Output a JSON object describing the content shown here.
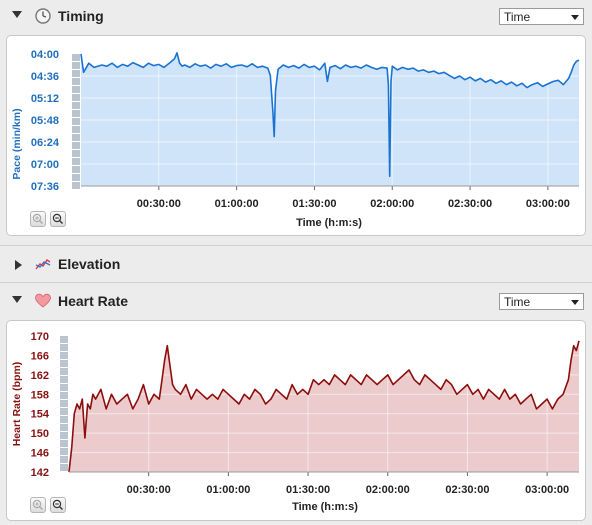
{
  "sections": {
    "timing": {
      "title": "Timing",
      "select_value": "Time",
      "icon": "clock-icon"
    },
    "elevation": {
      "title": "Elevation",
      "icon": "elevation-icon"
    },
    "heart_rate": {
      "title": "Heart Rate",
      "select_value": "Time",
      "icon": "heart-icon"
    }
  },
  "colors": {
    "pace_line": "#1a73d2",
    "pace_fill": "#cfe4f8",
    "hr_line": "#8e0d0d",
    "hr_fill": "#ebcbcb",
    "pace_axis_text": "#1f6fbf",
    "hr_axis_text": "#8a1111"
  },
  "chart_data": [
    {
      "type": "area",
      "title": "",
      "ylabel": "Pace (min/km)",
      "xlabel": "Time (h:m:s)",
      "yticks": [
        "04:00",
        "04:36",
        "05:12",
        "05:48",
        "06:24",
        "07:00",
        "07:36"
      ],
      "xticks": [
        "00:30:00",
        "01:00:00",
        "01:30:00",
        "02:00:00",
        "02:30:00",
        "03:00:00"
      ],
      "y_inverted": true,
      "ylim_seconds_per_km": [
        240,
        456
      ],
      "x_minutes": [
        0,
        1,
        3,
        5,
        8,
        10,
        12,
        14,
        16,
        18,
        20,
        22,
        24,
        26,
        28,
        30,
        32,
        34,
        36,
        37,
        38,
        39,
        40,
        42,
        44,
        46,
        48,
        50,
        52,
        54,
        56,
        58,
        60,
        62,
        64,
        66,
        68,
        70,
        72,
        73,
        74,
        74.5,
        75,
        76,
        78,
        80,
        82,
        84,
        86,
        88,
        90,
        92,
        94,
        95,
        96,
        98,
        100,
        102,
        104,
        106,
        108,
        110,
        112,
        114,
        116,
        118,
        118.5,
        119,
        119.5,
        120,
        122,
        124,
        126,
        128,
        130,
        132,
        134,
        136,
        138,
        140,
        142,
        144,
        146,
        148,
        150,
        152,
        154,
        156,
        158,
        160,
        162,
        164,
        166,
        168,
        170,
        172,
        174,
        176,
        178,
        180,
        182,
        184,
        186,
        188,
        189,
        190,
        191,
        192
      ],
      "pace_seconds_per_km": [
        240,
        270,
        255,
        262,
        258,
        260,
        255,
        262,
        257,
        260,
        254,
        258,
        262,
        255,
        259,
        257,
        262,
        255,
        248,
        238,
        255,
        260,
        258,
        262,
        256,
        260,
        258,
        263,
        257,
        260,
        256,
        262,
        259,
        258,
        261,
        256,
        262,
        260,
        263,
        275,
        335,
        375,
        300,
        265,
        258,
        262,
        259,
        263,
        257,
        262,
        260,
        266,
        255,
        285,
        262,
        259,
        264,
        258,
        262,
        260,
        263,
        258,
        262,
        265,
        262,
        263,
        290,
        440,
        285,
        260,
        266,
        262,
        265,
        263,
        268,
        266,
        270,
        268,
        272,
        270,
        275,
        280,
        276,
        282,
        278,
        284,
        280,
        286,
        282,
        288,
        284,
        290,
        286,
        292,
        288,
        295,
        290,
        287,
        293,
        289,
        285,
        283,
        290,
        280,
        270,
        258,
        252,
        250
      ]
    },
    {
      "type": "area",
      "title": "",
      "ylabel": "Heart Rate (bpm)",
      "xlabel": "Time (h:m:s)",
      "yticks": [
        "170",
        "166",
        "162",
        "158",
        "154",
        "150",
        "146",
        "142"
      ],
      "xticks": [
        "00:30:00",
        "01:00:00",
        "01:30:00",
        "02:00:00",
        "02:30:00",
        "03:00:00"
      ],
      "ylim": [
        142,
        170
      ],
      "x_minutes": [
        0,
        1,
        2,
        3,
        4,
        5,
        6,
        7,
        8,
        9,
        10,
        12,
        14,
        16,
        18,
        20,
        22,
        24,
        26,
        28,
        30,
        32,
        34,
        35,
        36,
        37,
        38,
        39,
        40,
        42,
        44,
        46,
        48,
        50,
        52,
        54,
        56,
        58,
        60,
        62,
        64,
        66,
        68,
        70,
        72,
        74,
        76,
        78,
        80,
        82,
        84,
        86,
        88,
        90,
        92,
        94,
        96,
        98,
        100,
        102,
        104,
        106,
        108,
        110,
        112,
        114,
        116,
        118,
        120,
        122,
        124,
        126,
        128,
        130,
        132,
        134,
        136,
        138,
        140,
        142,
        144,
        146,
        148,
        150,
        152,
        154,
        156,
        158,
        160,
        162,
        164,
        166,
        168,
        170,
        172,
        174,
        176,
        178,
        180,
        182,
        184,
        186,
        188,
        189,
        190,
        191,
        192
      ],
      "values": [
        142,
        147,
        154,
        156,
        155,
        157,
        149,
        156,
        155,
        158,
        157,
        159,
        155,
        158,
        156,
        157,
        158,
        155,
        157,
        160,
        156,
        158,
        157,
        161,
        165,
        168,
        164,
        160,
        159,
        158,
        160,
        157,
        159,
        158,
        157,
        158,
        157,
        159,
        158,
        157,
        156,
        158,
        157,
        159,
        158,
        156,
        157,
        159,
        158,
        157,
        160,
        158,
        159,
        158,
        161,
        160,
        161,
        160,
        162,
        161,
        160,
        162,
        161,
        160,
        162,
        161,
        160,
        161,
        162,
        160,
        161,
        162,
        163,
        161,
        160,
        162,
        161,
        160,
        159,
        161,
        160,
        158,
        159,
        160,
        158,
        159,
        157,
        159,
        158,
        157,
        159,
        157,
        158,
        156,
        157,
        158,
        155,
        156,
        157,
        155,
        157,
        158,
        161,
        165,
        168,
        167,
        169
      ]
    }
  ]
}
